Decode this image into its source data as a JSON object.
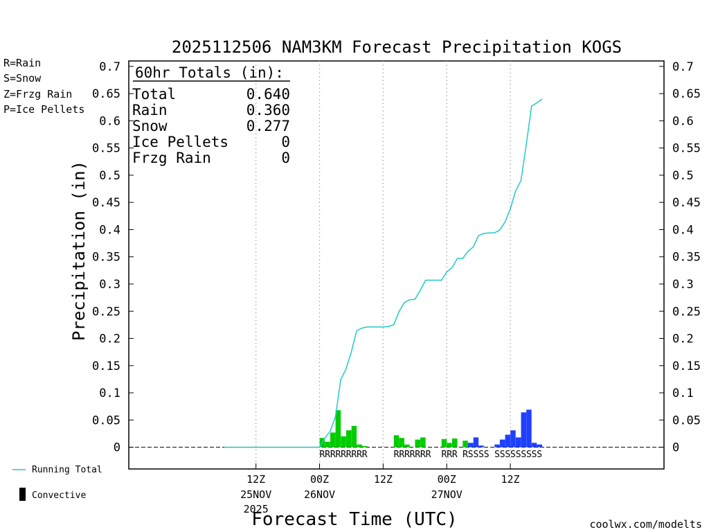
{
  "chart_data": {
    "type": "bar",
    "title": "2025112506 NAM3KM Forecast Precipitation KOGS",
    "xlabel": "Forecast Time (UTC)",
    "ylabel": "Precipitation (in)",
    "ylim": [
      -0.04,
      0.71
    ],
    "xlim_hours": [
      -18,
      83
    ],
    "grid": "vertical dotted at 6-hourly major ticks",
    "y_ticks": [
      0,
      0.05,
      0.1,
      0.15,
      0.2,
      0.25,
      0.3,
      0.35,
      0.4,
      0.45,
      0.5,
      0.55,
      0.6,
      0.65,
      0.7
    ],
    "y_tick_labels": [
      "0",
      "0.05",
      "0.1",
      "0.15",
      "0.2",
      "0.25",
      "0.3",
      "0.35",
      "0.4",
      "0.45",
      "0.5",
      "0.55",
      "0.6",
      "0.65",
      "0.7"
    ],
    "x_ticks": [
      {
        "hour": 6,
        "line1": "12Z",
        "line2": "25NOV",
        "line3": "2025"
      },
      {
        "hour": 18,
        "line1": "00Z",
        "line2": "26NOV",
        "line3": ""
      },
      {
        "hour": 30,
        "line1": "12Z",
        "line2": "",
        "line3": ""
      },
      {
        "hour": 42,
        "line1": "00Z",
        "line2": "27NOV",
        "line3": ""
      },
      {
        "hour": 54,
        "line1": "12Z",
        "line2": "",
        "line3": ""
      }
    ],
    "hourly_hours": [
      19,
      20,
      21,
      22,
      23,
      24,
      25,
      26,
      27,
      28,
      29,
      30,
      31,
      32,
      33,
      34,
      35,
      36,
      37,
      38,
      39,
      40,
      41,
      42,
      43,
      44,
      45,
      46,
      47,
      48,
      49,
      50,
      51,
      52,
      53,
      54,
      55,
      56,
      57,
      58,
      59,
      60
    ],
    "hourly_precip": [
      0.017,
      0.01,
      0.027,
      0.068,
      0.02,
      0.031,
      0.039,
      0.005,
      0.002,
      0,
      0,
      0,
      0,
      0,
      0.022,
      0.017,
      0.005,
      0,
      0.014,
      0.018,
      0,
      0,
      0,
      0.015,
      0.008,
      0.016,
      0,
      0.012,
      0.008,
      0.018,
      0.003,
      0,
      0,
      0.005,
      0.014,
      0.023,
      0.031,
      0.018,
      0.064,
      0.069,
      0.008,
      0.005
    ],
    "hourly_ptype": [
      "R",
      "R",
      "R",
      "R",
      "R",
      "R",
      "R",
      "R",
      "R",
      "",
      "",
      "",
      "",
      "",
      "R",
      "R",
      "R",
      "R",
      "R",
      "R",
      "R",
      "",
      "",
      "R",
      "R",
      "R",
      "",
      "R",
      "S",
      "S",
      "S",
      "S",
      "",
      "S",
      "S",
      "S",
      "S",
      "S",
      "S",
      "S",
      "S",
      "S"
    ],
    "running_total_hours": [
      0,
      18,
      19,
      20,
      21,
      22,
      23,
      24,
      25,
      26,
      27,
      28,
      29,
      30,
      31,
      32,
      33,
      34,
      35,
      36,
      37,
      38,
      39,
      40,
      41,
      42,
      43,
      44,
      45,
      46,
      47,
      48,
      49,
      50,
      51,
      52,
      53,
      54,
      55,
      56,
      57,
      58,
      59,
      60
    ],
    "running_total": [
      0,
      0,
      0.017,
      0.029,
      0.056,
      0.124,
      0.144,
      0.175,
      0.214,
      0.219,
      0.221,
      0.221,
      0.221,
      0.221,
      0.222,
      0.225,
      0.249,
      0.266,
      0.271,
      0.272,
      0.288,
      0.307,
      0.307,
      0.307,
      0.307,
      0.322,
      0.33,
      0.347,
      0.347,
      0.36,
      0.368,
      0.389,
      0.393,
      0.394,
      0.394,
      0.399,
      0.414,
      0.438,
      0.471,
      0.49,
      0.555,
      0.627,
      0.633,
      0.64
    ],
    "series_legend": {
      "running_total": "Running Total",
      "convective": "Convective"
    },
    "ptype_legend": [
      {
        "text": "R=Rain",
        "color": "#00cc00"
      },
      {
        "text": "S=Snow",
        "color": "#2040ff"
      },
      {
        "text": "Z=Frzg Rain",
        "color": "#ff8c1a"
      },
      {
        "text": "P=Ice Pellets",
        "color": "#ff1493"
      }
    ],
    "totals_box": {
      "heading": "60hr Totals (in):",
      "rows": [
        {
          "label": "Total",
          "value": "0.640"
        },
        {
          "label": "Rain",
          "value": "0.360"
        },
        {
          "label": "Snow",
          "value": "0.277"
        },
        {
          "label": "Ice Pellets",
          "value": "0"
        },
        {
          "label": "Frzg Rain",
          "value": "0"
        }
      ]
    },
    "credit": "coolwx.com/modelts"
  },
  "colors": {
    "rain": "#00cc00",
    "snow": "#2040ff",
    "running_total": "#20c8c8",
    "grid": "#a0a0a0",
    "credit": "#e03030",
    "axis": "#000000"
  }
}
